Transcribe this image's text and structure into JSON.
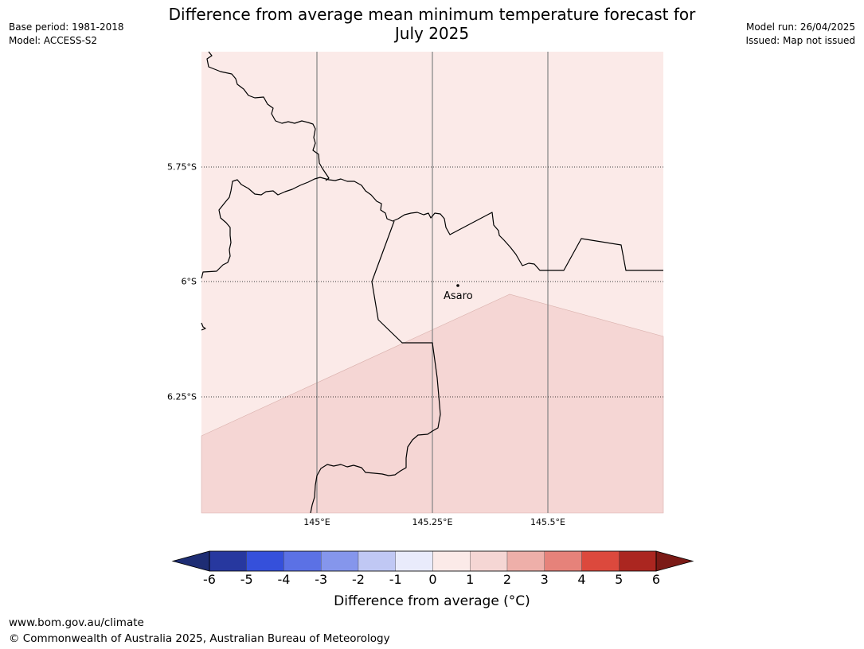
{
  "header": {
    "title_line1": "Difference from average mean minimum temperature forecast for",
    "title_line2": "July 2025",
    "base_period": "Base period: 1981-2018",
    "model": "Model: ACCESS-S2",
    "model_run": "Model run: 26/04/2025",
    "issued": "Issued: Map not issued"
  },
  "map": {
    "latitude_labels": [
      "5.75°S",
      "6°S",
      "6.25°S"
    ],
    "longitude_labels": [
      "145°E",
      "145.25°E",
      "145.5°E"
    ],
    "place": {
      "name": "Asaro",
      "lon": 145.3,
      "lat": -6.01
    },
    "zones": [
      {
        "category": "0 to 1",
        "color": "#fbeae8"
      },
      {
        "category": "1 to 2",
        "color": "#f5d6d4"
      }
    ]
  },
  "colorbar": {
    "title": "Difference from average (°C)",
    "ticks": [
      "-6",
      "-5",
      "-4",
      "-3",
      "-2",
      "-1",
      "0",
      "1",
      "2",
      "3",
      "4",
      "5",
      "6"
    ],
    "colors": [
      "#27389f",
      "#3550db",
      "#5b71e5",
      "#8596ec",
      "#c0c8f4",
      "#e9ebfb",
      "#fbeae8",
      "#f5d6d4",
      "#eeafa9",
      "#e6827a",
      "#dc493d",
      "#ab2620"
    ],
    "extend_low_color": "#1e2d74",
    "extend_high_color": "#7b1a16"
  },
  "footer": {
    "url": "www.bom.gov.au/climate",
    "copyright": "© Commonwealth of Australia 2025, Australian Bureau of Meteorology"
  }
}
